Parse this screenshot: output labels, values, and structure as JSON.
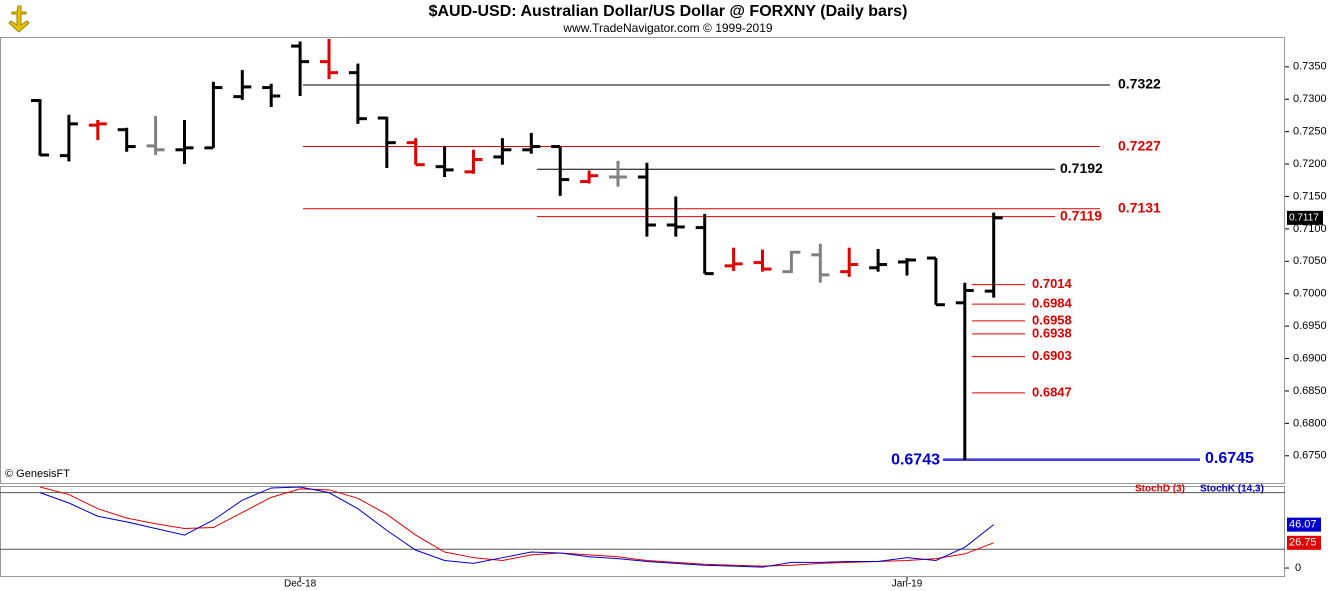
{
  "header": {
    "title": "$AUD-USD:  Australian Dollar/US Dollar @ FORXNY  (Daily bars)",
    "subtitle": "www.TradeNavigator.com © 1999-2019"
  },
  "chart_data": [
    {
      "type": "ohlc",
      "credit": "© GenesisFT",
      "categories": [
        null,
        null,
        null,
        null,
        null,
        null,
        null,
        null,
        null,
        "Dec-18",
        null,
        null,
        null,
        null,
        null,
        null,
        null,
        null,
        null,
        null,
        null,
        null,
        null,
        null,
        null,
        null,
        null,
        null,
        null,
        null,
        "Jan-19",
        null,
        null,
        null
      ],
      "open": [
        0.7298,
        0.7213,
        0.726,
        0.7253,
        0.7228,
        0.7222,
        0.7225,
        0.7304,
        0.7318,
        0.7382,
        0.7358,
        0.7341,
        0.7271,
        0.7233,
        0.7196,
        0.7188,
        0.7211,
        0.7222,
        0.7227,
        0.7173,
        0.718,
        0.718,
        0.7106,
        0.7102,
        0.7043,
        0.7048,
        0.7034,
        0.706,
        0.7034,
        0.704,
        0.7049,
        0.7055,
        0.6986,
        0.7004
      ],
      "high": [
        0.73,
        0.7276,
        0.7268,
        0.7256,
        0.7274,
        0.7268,
        0.7327,
        0.7345,
        0.7324,
        0.7389,
        0.7393,
        0.7355,
        0.7273,
        0.724,
        0.7228,
        0.7222,
        0.724,
        0.7248,
        0.7227,
        0.719,
        0.7205,
        0.7202,
        0.715,
        0.7123,
        0.7071,
        0.7068,
        0.7066,
        0.7077,
        0.7071,
        0.7069,
        0.7055,
        0.7055,
        0.7017,
        0.7125
      ],
      "low": [
        0.7213,
        0.7204,
        0.7237,
        0.7219,
        0.7214,
        0.72,
        0.7225,
        0.7299,
        0.7288,
        0.7305,
        0.7331,
        0.7262,
        0.7194,
        0.7199,
        0.718,
        0.7185,
        0.7199,
        0.7216,
        0.7151,
        0.717,
        0.7165,
        0.7088,
        0.7088,
        0.7031,
        0.7035,
        0.7034,
        0.7032,
        0.7017,
        0.7026,
        0.7034,
        0.7028,
        0.6983,
        0.6743,
        0.6994
      ],
      "close": [
        0.7214,
        0.7262,
        0.7262,
        0.7227,
        0.7222,
        0.7225,
        0.7318,
        0.7319,
        0.7305,
        0.7358,
        0.7341,
        0.727,
        0.7233,
        0.7199,
        0.7191,
        0.7207,
        0.7222,
        0.7227,
        0.7176,
        0.7182,
        0.718,
        0.7106,
        0.7103,
        0.7031,
        0.7046,
        0.7038,
        0.7064,
        0.7029,
        0.7045,
        0.7045,
        0.7052,
        0.6983,
        0.7005,
        0.7117
      ],
      "colors": [
        "#000000",
        "#000000",
        "#e00000",
        "#000000",
        "#808080",
        "#000000",
        "#000000",
        "#000000",
        "#000000",
        "#000000",
        "#e00000",
        "#000000",
        "#000000",
        "#e00000",
        "#000000",
        "#e00000",
        "#000000",
        "#000000",
        "#000000",
        "#e00000",
        "#808080",
        "#000000",
        "#000000",
        "#000000",
        "#e00000",
        "#e00000",
        "#808080",
        "#808080",
        "#e00000",
        "#000000",
        "#000000",
        "#000000",
        "#000000",
        "#000000"
      ],
      "ylim": [
        0.6708,
        0.7396
      ],
      "yticks": [
        {
          "value": 0.735,
          "label": "0.7350"
        },
        {
          "value": 0.73,
          "label": "0.7300"
        },
        {
          "value": 0.725,
          "label": "0.7250"
        },
        {
          "value": 0.72,
          "label": "0.7200"
        },
        {
          "value": 0.715,
          "label": "0.7150"
        },
        {
          "value": 0.71,
          "label": "0.7100"
        },
        {
          "value": 0.705,
          "label": "0.7050"
        },
        {
          "value": 0.7,
          "label": "0.7000"
        },
        {
          "value": 0.695,
          "label": "0.6950"
        },
        {
          "value": 0.69,
          "label": "0.6900"
        },
        {
          "value": 0.685,
          "label": "0.6850"
        },
        {
          "value": 0.68,
          "label": "0.6800"
        },
        {
          "value": 0.675,
          "label": "0.6750"
        }
      ],
      "annotations": [
        {
          "value": 0.7322,
          "color": "#000000"
        },
        {
          "value": 0.7227,
          "color": "#e00000"
        },
        {
          "value": 0.7192,
          "color": "#000000"
        },
        {
          "value": 0.7131,
          "color": "#e00000"
        },
        {
          "value": 0.7119,
          "color": "#e00000"
        },
        {
          "value": 0.7014,
          "color": "#e00000"
        },
        {
          "value": 0.6984,
          "color": "#e00000"
        },
        {
          "value": 0.6958,
          "color": "#e00000"
        },
        {
          "value": 0.6938,
          "color": "#e00000"
        },
        {
          "value": 0.6903,
          "color": "#e00000"
        },
        {
          "value": 0.6847,
          "color": "#e00000"
        },
        {
          "value": 0.6743,
          "color": "#0000cc"
        },
        {
          "value": 0.6745,
          "color": "#0000cc"
        }
      ]
    },
    {
      "type": "line",
      "series": [
        {
          "name": "StochD (3)",
          "color": "#e00000",
          "values": [
            86,
            78,
            63,
            53,
            47,
            42,
            43,
            59,
            75,
            84,
            83,
            74,
            57,
            35,
            17,
            11,
            8,
            14,
            16,
            14,
            12,
            8,
            6,
            4,
            3,
            2,
            3,
            5,
            6,
            7,
            8,
            10,
            15,
            26.75
          ]
        },
        {
          "name": "StochK (14,3)",
          "color": "#0000cc",
          "values": [
            80,
            69,
            55,
            49,
            42,
            35,
            51,
            72,
            85,
            86,
            80,
            63,
            40,
            19,
            8,
            5,
            11,
            17,
            16,
            12,
            10,
            7,
            5,
            3,
            2,
            1,
            6,
            6,
            7,
            7,
            11,
            8,
            22,
            46.07
          ]
        }
      ],
      "levels": [
        20,
        80
      ],
      "ylim": [
        -9.5,
        86
      ],
      "yticks": [
        0
      ]
    }
  ]
}
